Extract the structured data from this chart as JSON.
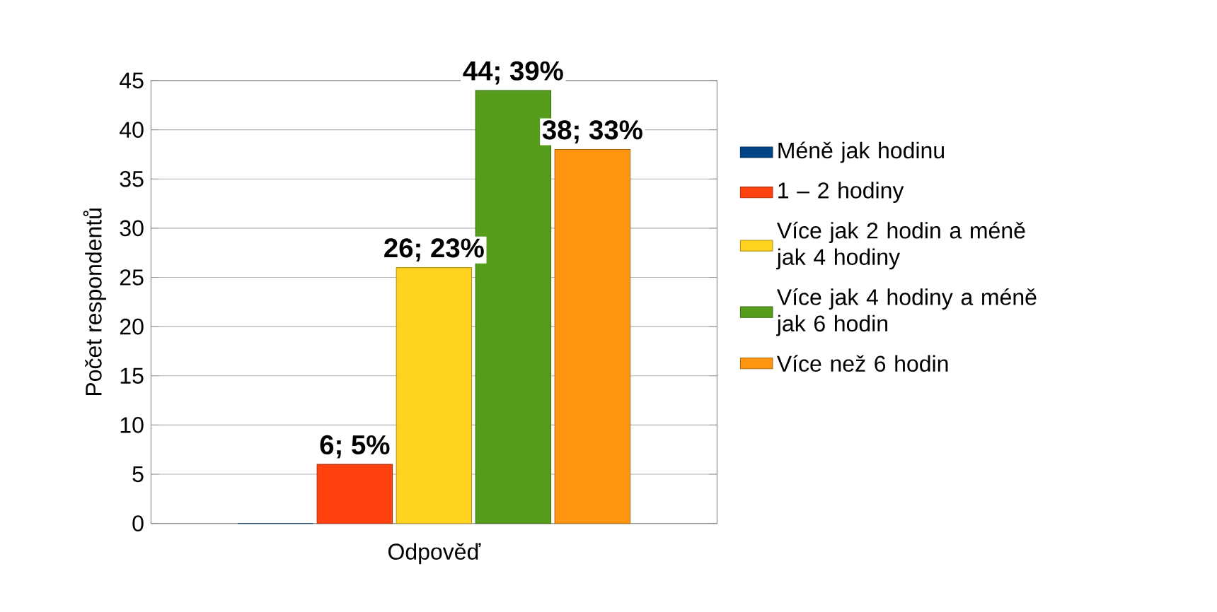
{
  "chart_data": {
    "type": "bar",
    "xlabel": "Odpověď",
    "ylabel": "Počet respondentů",
    "categories": [
      null
    ],
    "series": [
      {
        "name": "Méně jak hodinu",
        "color": "#004586",
        "values": [
          0
        ],
        "value_labels": [
          null
        ]
      },
      {
        "name": "1 – 2 hodiny",
        "color": "#ff420e",
        "values": [
          6
        ],
        "value_labels": [
          "6; 5%"
        ]
      },
      {
        "name": "Více jak 2 hodin a méně jak 4 hodiny",
        "color": "#ffd320",
        "values": [
          26
        ],
        "value_labels": [
          "26; 23%"
        ]
      },
      {
        "name": "Více jak 4 hodiny a méně jak 6 hodin",
        "color": "#579d1c",
        "values": [
          44
        ],
        "value_labels": [
          "44; 39%"
        ]
      },
      {
        "name": "Více než 6 hodin",
        "color": "#ff950e",
        "values": [
          38
        ],
        "value_labels": [
          "38; 33%"
        ]
      }
    ],
    "ylim": [
      0,
      45
    ],
    "yticks": [
      0,
      5,
      10,
      15,
      20,
      25,
      30,
      35,
      40,
      45
    ],
    "grid": "y",
    "legend": "right"
  }
}
